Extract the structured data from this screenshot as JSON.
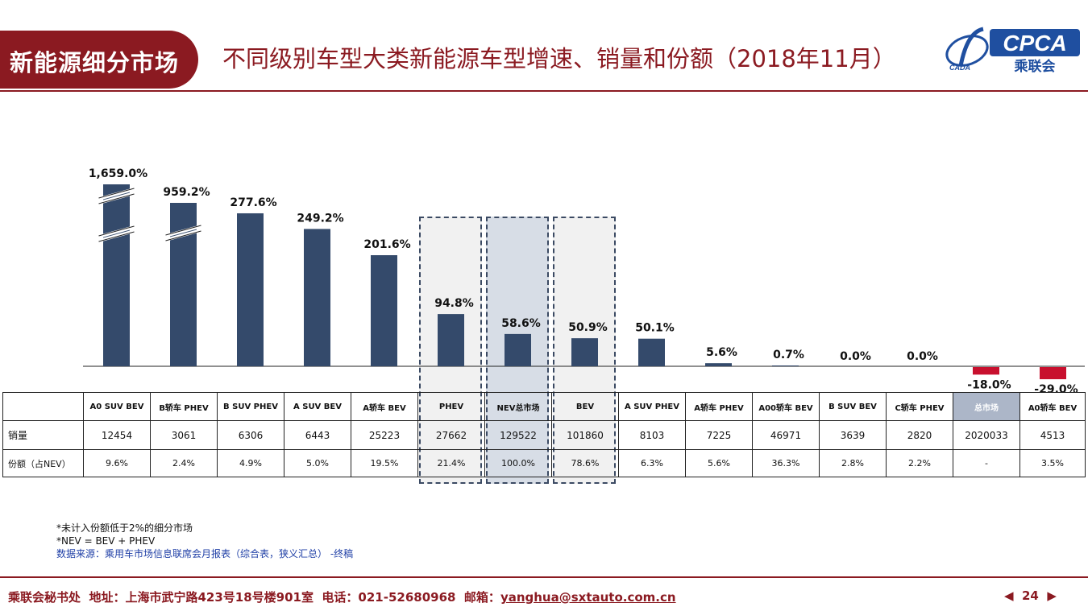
{
  "header": {
    "tag": "新能源细分市场",
    "title": "不同级别车型大类新能源车型增速、销量和份额（2018年11月）",
    "logo_text_top": "CPCA",
    "logo_text_bottom": "乘联会",
    "logo_small": "CADA"
  },
  "colors": {
    "brand": "#8b1a21",
    "bar_positive": "#344a6b",
    "bar_negative": "#c8102e",
    "highlight_nev": "#d7dde6",
    "highlight_other": "#f1f1f1",
    "total_header": "#acb6c8"
  },
  "chart_data": {
    "type": "bar",
    "categories": [
      "A0 SUV BEV",
      "B轿车 PHEV",
      "B SUV PHEV",
      "A SUV BEV",
      "A轿车 BEV",
      "PHEV",
      "NEV总市场",
      "BEV",
      "A SUV PHEV",
      "A轿车 PHEV",
      "A00轿车 BEV",
      "B SUV BEV",
      "C轿车 PHEV",
      "总市场",
      "A0轿车 BEV"
    ],
    "values": [
      1659.0,
      959.2,
      277.6,
      249.2,
      201.6,
      94.8,
      58.6,
      50.9,
      50.1,
      5.6,
      0.7,
      0.0,
      0.0,
      -18.0,
      -29.0
    ],
    "value_labels": [
      "1,659.0%",
      "959.2%",
      "277.6%",
      "249.2%",
      "201.6%",
      "94.8%",
      "58.6%",
      "50.9%",
      "50.1%",
      "5.6%",
      "0.7%",
      "0.0%",
      "0.0%",
      "-18.0%",
      "-29.0%"
    ],
    "axis_breaks": [
      0,
      1
    ],
    "highlighted": [
      "PHEV",
      "NEV总市场",
      "BEV"
    ],
    "title": "",
    "xlabel": "",
    "ylabel": ""
  },
  "table": {
    "row_labels": [
      "销量",
      "份额（占NEV）"
    ],
    "sales": [
      "12454",
      "3061",
      "6306",
      "6443",
      "25223",
      "27662",
      "129522",
      "101860",
      "8103",
      "7225",
      "46971",
      "3639",
      "2820",
      "2020033",
      "4513"
    ],
    "share": [
      "9.6%",
      "2.4%",
      "4.9%",
      "5.0%",
      "19.5%",
      "21.4%",
      "100.0%",
      "78.6%",
      "6.3%",
      "5.6%",
      "36.3%",
      "2.8%",
      "2.2%",
      "-",
      "3.5%"
    ]
  },
  "notes": {
    "line1": "*未计入份额低于2%的细分市场",
    "line2": "*NEV = BEV + PHEV",
    "line3": "数据来源：乘用车市场信息联席会月报表（综合表，狭义汇总） -终稿"
  },
  "footer": {
    "org": "乘联会秘书处",
    "address": "地址：上海市武宁路423号18号楼901室",
    "phone": "电话：021-52680968",
    "email_label": "邮箱：",
    "email": "yanghua@sxtauto.com.cn",
    "page": "24",
    "prev_icon": "triangle-left",
    "next_icon": "triangle-right"
  }
}
